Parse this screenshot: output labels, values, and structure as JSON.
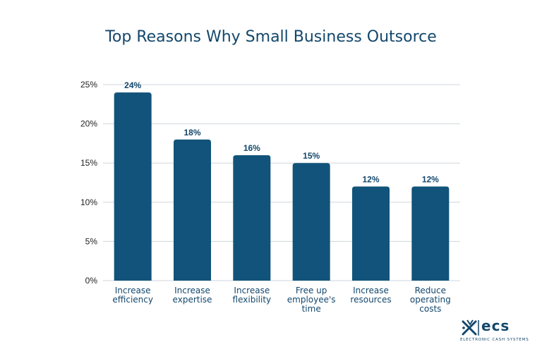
{
  "chart_data": {
    "type": "bar",
    "title": "Top Reasons Why Small Business Outsorce",
    "categories": [
      [
        "Increase",
        "efficiency"
      ],
      [
        "Increase",
        "expertise"
      ],
      [
        "Increase",
        "flexibility"
      ],
      [
        "Free up",
        "employee's",
        "time"
      ],
      [
        "Increase",
        "resources"
      ],
      [
        "Reduce",
        "operating",
        "costs"
      ]
    ],
    "values": [
      24,
      18,
      16,
      15,
      12,
      12
    ],
    "value_labels": [
      "24%",
      "18%",
      "16%",
      "15%",
      "12%",
      "12%"
    ],
    "y_ticks": [
      0,
      5,
      10,
      15,
      20,
      25
    ],
    "y_tick_labels": [
      "0%",
      "5%",
      "10%",
      "15%",
      "20%",
      "25%"
    ],
    "ylim": [
      0,
      25
    ],
    "xlabel": "",
    "ylabel": "",
    "grid": true,
    "bar_color": "#11537a",
    "grid_color": "#cfd6dc",
    "text_color": "#13476c"
  },
  "logo": {
    "name": "ecs",
    "subtitle": "ELECTRONIC CASH SYSTEMS",
    "color": "#13476c"
  }
}
